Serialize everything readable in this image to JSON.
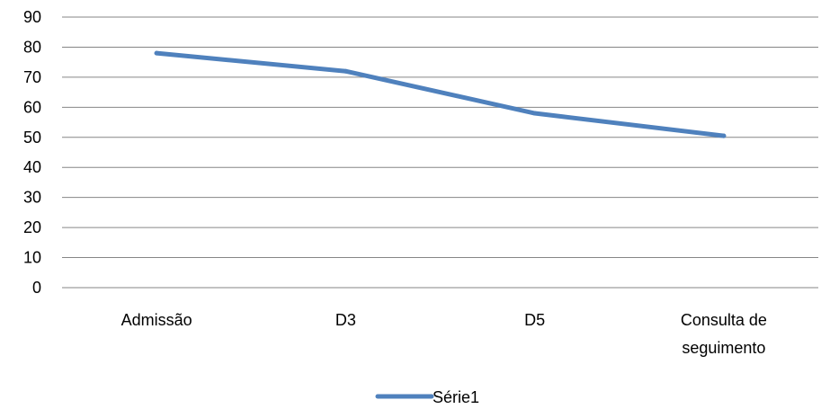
{
  "chart_data": {
    "type": "line",
    "title": "",
    "xlabel": "",
    "ylabel": "",
    "categories": [
      [
        "Admissão"
      ],
      [
        "D3"
      ],
      [
        "D5"
      ],
      [
        "Consulta de",
        "seguimento"
      ]
    ],
    "ylim": [
      0,
      90
    ],
    "yticks": [
      0,
      10,
      20,
      30,
      40,
      50,
      60,
      70,
      80,
      90
    ],
    "grid": true,
    "legend": "bottom",
    "series": [
      {
        "name": "Série1",
        "color": "#4F81BD",
        "values": [
          78,
          72,
          58,
          50.5
        ]
      }
    ]
  }
}
